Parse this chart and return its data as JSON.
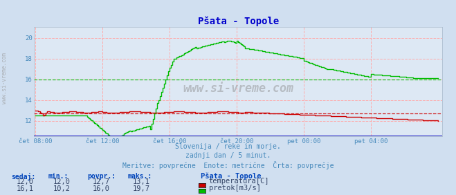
{
  "title": "Pšata - Topole",
  "title_color": "#0000cc",
  "bg_color": "#d0dff0",
  "plot_bg_color": "#dde8f4",
  "x_ticks_labels": [
    "čet 08:00",
    "čet 12:00",
    "čet 16:00",
    "čet 20:00",
    "pet 00:00",
    "pet 04:00"
  ],
  "x_ticks_pos": [
    0,
    48,
    96,
    144,
    192,
    240
  ],
  "y_ticks": [
    12,
    14,
    16,
    18,
    20
  ],
  "ylim_min": 10.5,
  "ylim_max": 21.0,
  "temp_color": "#cc0000",
  "flow_color": "#00bb00",
  "temp_avg": 12.7,
  "flow_avg": 16.0,
  "temp_current": "12,0",
  "temp_min": "12,0",
  "temp_povpr": "12,7",
  "temp_max": "13,1",
  "flow_current": "16,1",
  "flow_min": "10,2",
  "flow_povpr": "16,0",
  "flow_max": "19,7",
  "subtitle1": "Slovenija / reke in morje.",
  "subtitle2": "zadnji dan / 5 minut.",
  "subtitle3": "Meritve: povprečne  Enote: metrične  Črta: povprečje",
  "watermark": "www.si-vreme.com",
  "legend_title": "Pšata - Topole",
  "legend_temp": "temperatura[C]",
  "legend_flow": "pretok[m3/s]",
  "col_headers": [
    "sedaj:",
    "min.:",
    "povpr.:",
    "maks.:"
  ]
}
